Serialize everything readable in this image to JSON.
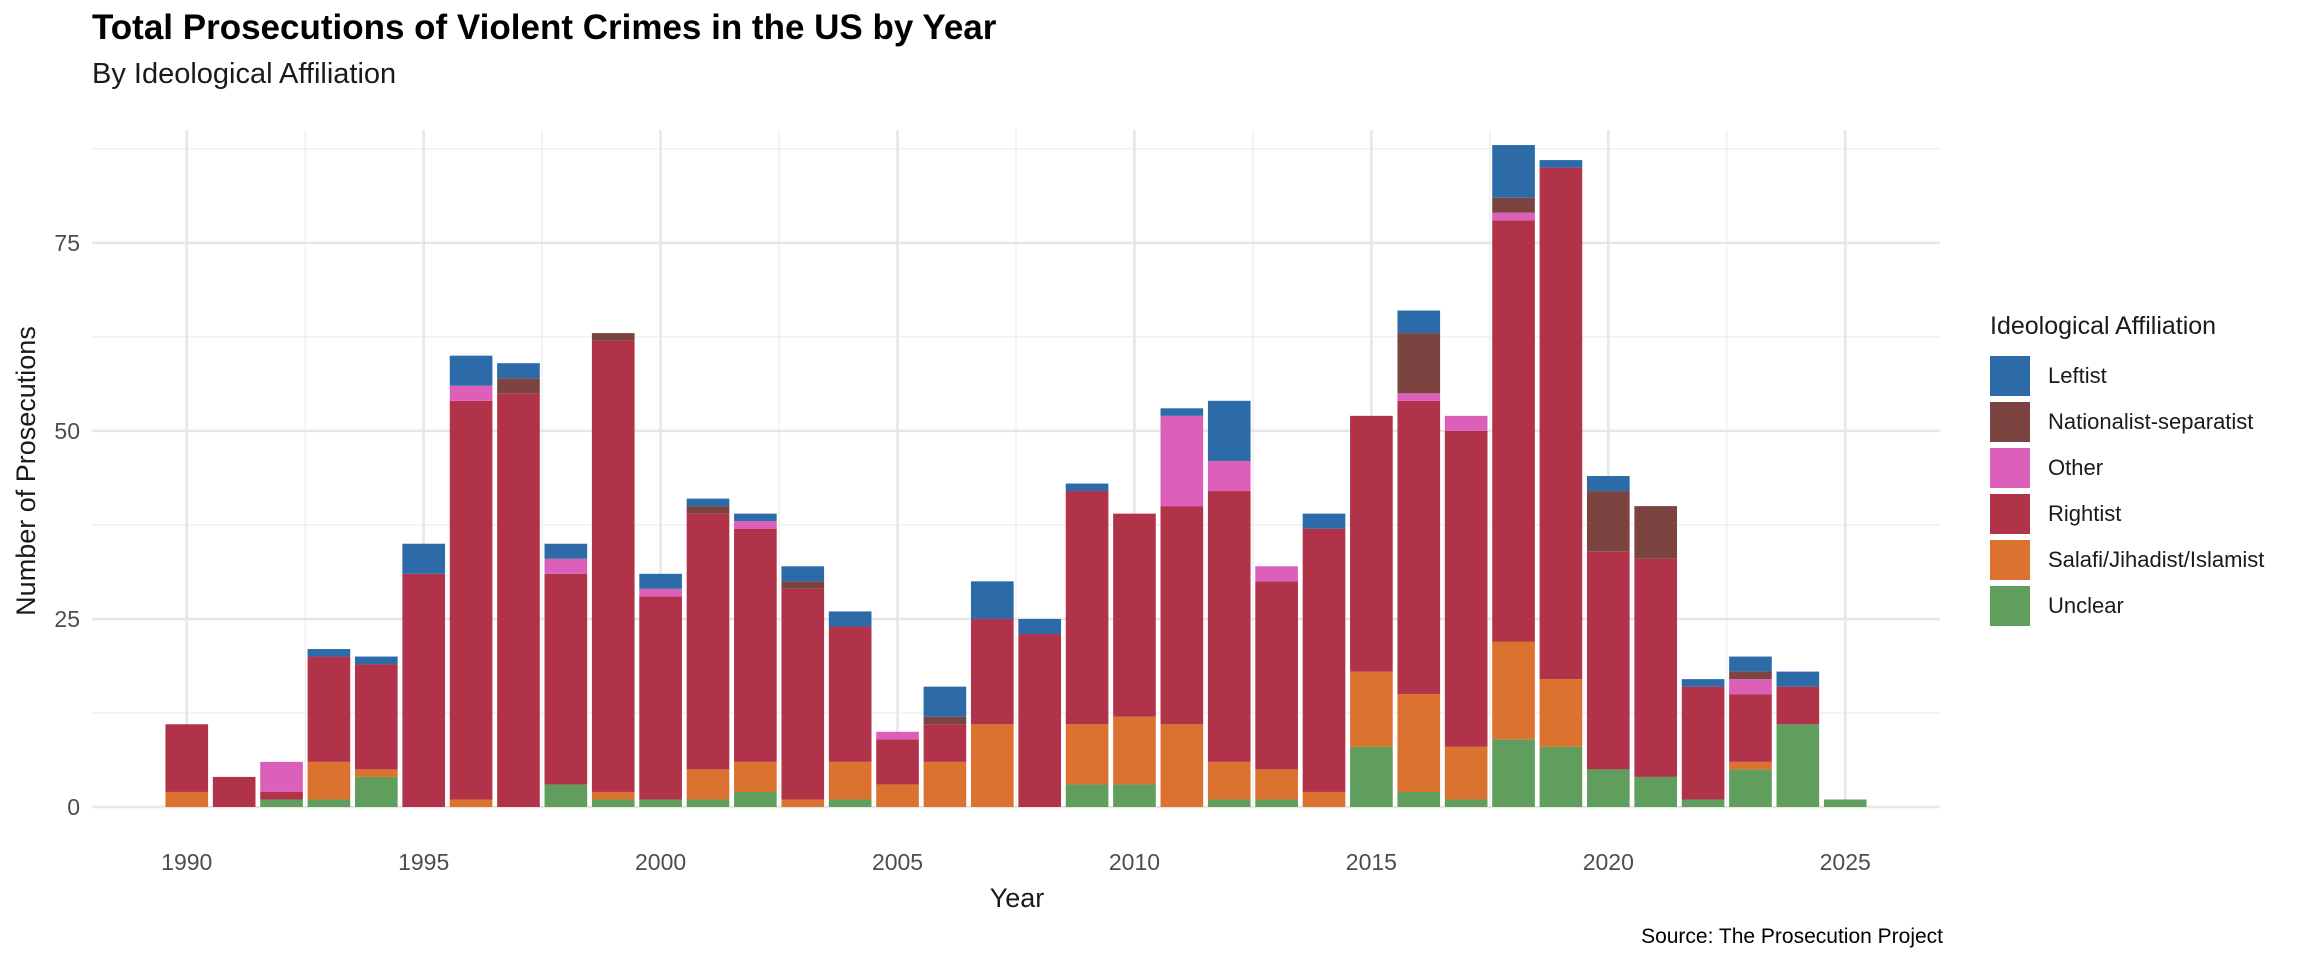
{
  "chart_data": {
    "type": "bar",
    "stacked": true,
    "title": "Total Prosecutions of Violent Crimes in the US by Year",
    "subtitle": "By Ideological Affiliation",
    "xlabel": "Year",
    "ylabel": "Number of Prosecutions",
    "source": "Source: The Prosecution Project",
    "legend_title": "Ideological Affiliation",
    "legend_position": "right",
    "grid": true,
    "xlim": [
      1988,
      2027
    ],
    "ylim": [
      0,
      90
    ],
    "x_ticks": [
      1990,
      1995,
      2000,
      2005,
      2010,
      2015,
      2020,
      2025
    ],
    "y_ticks": [
      0,
      25,
      50,
      75
    ],
    "x": [
      1990,
      1991,
      1992,
      1993,
      1994,
      1995,
      1996,
      1997,
      1998,
      1999,
      2000,
      2001,
      2002,
      2003,
      2004,
      2005,
      2006,
      2007,
      2008,
      2009,
      2010,
      2011,
      2012,
      2013,
      2014,
      2015,
      2016,
      2017,
      2018,
      2019,
      2020,
      2021,
      2022,
      2023,
      2024,
      2025
    ],
    "series": [
      {
        "name": "Unclear",
        "color": "#5f9e5c",
        "values": [
          0,
          0,
          1,
          1,
          4,
          0,
          0,
          0,
          3,
          1,
          1,
          1,
          2,
          0,
          1,
          0,
          0,
          0,
          0,
          3,
          3,
          0,
          1,
          1,
          0,
          8,
          2,
          1,
          9,
          8,
          5,
          4,
          1,
          5,
          11,
          1
        ]
      },
      {
        "name": "Salafi/Jihadist/Islamist",
        "color": "#db722f",
        "values": [
          2,
          0,
          0,
          5,
          1,
          0,
          1,
          0,
          0,
          1,
          0,
          4,
          4,
          1,
          5,
          3,
          6,
          11,
          0,
          8,
          9,
          11,
          5,
          4,
          2,
          10,
          13,
          7,
          13,
          9,
          0,
          0,
          0,
          1,
          0,
          0
        ]
      },
      {
        "name": "Rightist",
        "color": "#b13349",
        "values": [
          9,
          4,
          1,
          14,
          14,
          31,
          53,
          55,
          28,
          60,
          27,
          34,
          31,
          28,
          18,
          6,
          5,
          14,
          23,
          31,
          27,
          29,
          36,
          25,
          35,
          34,
          39,
          42,
          56,
          68,
          29,
          29,
          15,
          9,
          5,
          0
        ]
      },
      {
        "name": "Other",
        "color": "#dc60b9",
        "values": [
          0,
          0,
          4,
          0,
          0,
          0,
          2,
          0,
          2,
          0,
          1,
          0,
          1,
          0,
          0,
          1,
          0,
          0,
          0,
          0,
          0,
          12,
          4,
          2,
          0,
          0,
          1,
          2,
          1,
          0,
          0,
          0,
          0,
          2,
          0,
          0
        ]
      },
      {
        "name": "Nationalist-separatist",
        "color": "#7c4440",
        "values": [
          0,
          0,
          0,
          0,
          0,
          0,
          0,
          2,
          0,
          1,
          0,
          1,
          0,
          1,
          0,
          0,
          1,
          0,
          0,
          0,
          0,
          0,
          0,
          0,
          0,
          0,
          8,
          0,
          2,
          0,
          8,
          7,
          0,
          1,
          0,
          0
        ]
      },
      {
        "name": "Leftist",
        "color": "#2c6ba8",
        "values": [
          0,
          0,
          0,
          1,
          1,
          4,
          4,
          2,
          2,
          0,
          2,
          1,
          1,
          2,
          2,
          0,
          4,
          5,
          2,
          1,
          0,
          1,
          8,
          0,
          2,
          0,
          3,
          0,
          7,
          1,
          2,
          0,
          1,
          2,
          2,
          0
        ]
      }
    ],
    "legend_order": [
      "Leftist",
      "Nationalist-separatist",
      "Other",
      "Rightist",
      "Salafi/Jihadist/Islamist",
      "Unclear"
    ]
  }
}
